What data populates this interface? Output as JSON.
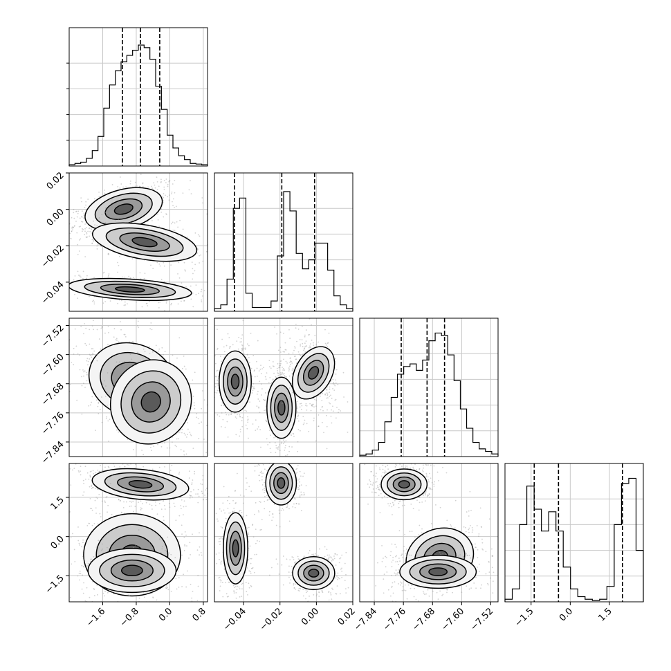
{
  "chart_data": {
    "type": "corner",
    "title": "",
    "parameters": [
      {
        "label": "",
        "range": [
          -2.4,
          0.9
        ],
        "ticks": [
          -1.6,
          -0.8,
          0.0,
          0.8
        ],
        "tick_labels": [
          "−1.6",
          "−0.8",
          "0.0",
          "0.8"
        ],
        "quantiles": [
          -1.13,
          -0.7,
          -0.24
        ],
        "hist": [
          0.01,
          0.02,
          0.03,
          0.06,
          0.12,
          0.23,
          0.45,
          0.63,
          0.74,
          0.81,
          0.86,
          0.9,
          0.94,
          0.92,
          0.83,
          0.62,
          0.44,
          0.24,
          0.14,
          0.08,
          0.05,
          0.02,
          0.015,
          0.01
        ]
      },
      {
        "label": "",
        "range": [
          -0.056,
          0.02
        ],
        "ticks": [
          -0.04,
          -0.02,
          0.0,
          0.02
        ],
        "tick_labels": [
          "−0.04",
          "−0.02",
          "0.00",
          "0.02"
        ],
        "quantiles": [
          -0.045,
          -0.019,
          -0.001
        ],
        "hist": [
          0.02,
          0.05,
          0.25,
          0.8,
          0.88,
          0.14,
          0.03,
          0.03,
          0.03,
          0.08,
          0.43,
          0.93,
          0.78,
          0.45,
          0.33,
          0.4,
          0.53,
          0.53,
          0.32,
          0.12,
          0.05,
          0.02
        ]
      },
      {
        "label": "",
        "range": [
          -7.88,
          -7.5
        ],
        "ticks": [
          -7.84,
          -7.76,
          -7.68,
          -7.6,
          -7.52
        ],
        "tick_labels": [
          "−7.84",
          "−7.76",
          "−7.68",
          "−7.60",
          "−7.52"
        ],
        "quantiles": [
          -7.766,
          -7.695,
          -7.647
        ],
        "hist": [
          0.01,
          0.02,
          0.05,
          0.11,
          0.27,
          0.46,
          0.64,
          0.7,
          0.72,
          0.67,
          0.75,
          0.9,
          0.96,
          0.94,
          0.79,
          0.59,
          0.37,
          0.22,
          0.11,
          0.06,
          0.04,
          0.02
        ]
      },
      {
        "label": "",
        "range": [
          -2.5,
          2.8
        ],
        "ticks": [
          -1.5,
          0.0,
          1.5
        ],
        "tick_labels": [
          "−1.5",
          "0.0",
          "1.5"
        ],
        "quantiles": [
          -1.38,
          -0.45,
          2.0
        ],
        "hist": [
          0.02,
          0.1,
          0.6,
          0.9,
          0.72,
          0.55,
          0.7,
          0.55,
          0.27,
          0.1,
          0.04,
          0.02,
          0.01,
          0.02,
          0.12,
          0.6,
          0.92,
          0.96,
          0.4
        ]
      }
    ],
    "blobs": [
      [
        [
          [
            -1.1,
            0.0001,
            0.45,
            0.0055,
            0.5,
            1.2
          ],
          [
            -0.6,
            -0.018,
            0.6,
            0.0048,
            -0.5,
            1.0
          ],
          [
            -0.95,
            -0.044,
            0.7,
            0.0028,
            -0.35,
            1.0
          ]
        ]
      ],
      [
        [
          [
            -0.9,
            -7.67,
            0.5,
            0.05,
            -0.45,
            1.2
          ],
          [
            -0.45,
            -7.73,
            0.45,
            0.06,
            -0.5,
            0.7
          ]
        ],
        [
          [
            -0.0446,
            -7.674,
            0.0042,
            0.04,
            0.0,
            1.0
          ],
          [
            -0.0192,
            -7.746,
            0.0038,
            0.04,
            0.0,
            1.1
          ],
          [
            -0.0016,
            -7.65,
            0.0048,
            0.038,
            -0.35,
            1.0
          ]
        ]
      ],
      [
        [
          [
            -0.7,
            2.0,
            0.55,
            0.28,
            -0.3,
            1.1
          ],
          [
            -0.9,
            -0.7,
            0.55,
            0.75,
            0.0,
            1.0
          ],
          [
            -0.9,
            -1.3,
            0.5,
            0.4,
            0.0,
            0.5
          ]
        ],
        [
          [
            -0.0194,
            2.05,
            0.004,
            0.4,
            0.0,
            1.0
          ],
          [
            -0.0444,
            -0.45,
            0.0032,
            0.65,
            0.0,
            0.9
          ],
          [
            -0.0015,
            -1.4,
            0.0055,
            0.3,
            0.0,
            0.9
          ]
        ],
        [
          [
            -7.758,
            2.0,
            0.03,
            0.28,
            0.0,
            1.0
          ],
          [
            -7.66,
            -0.8,
            0.045,
            0.55,
            0.45,
            0.9
          ],
          [
            -7.665,
            -1.35,
            0.05,
            0.3,
            0.0,
            0.7
          ]
        ]
      ]
    ],
    "grid": true,
    "hist_style": "step",
    "scatter_color": "#9a9a9a",
    "contour_color": "#000000",
    "quantile_line_style": "dashed"
  }
}
